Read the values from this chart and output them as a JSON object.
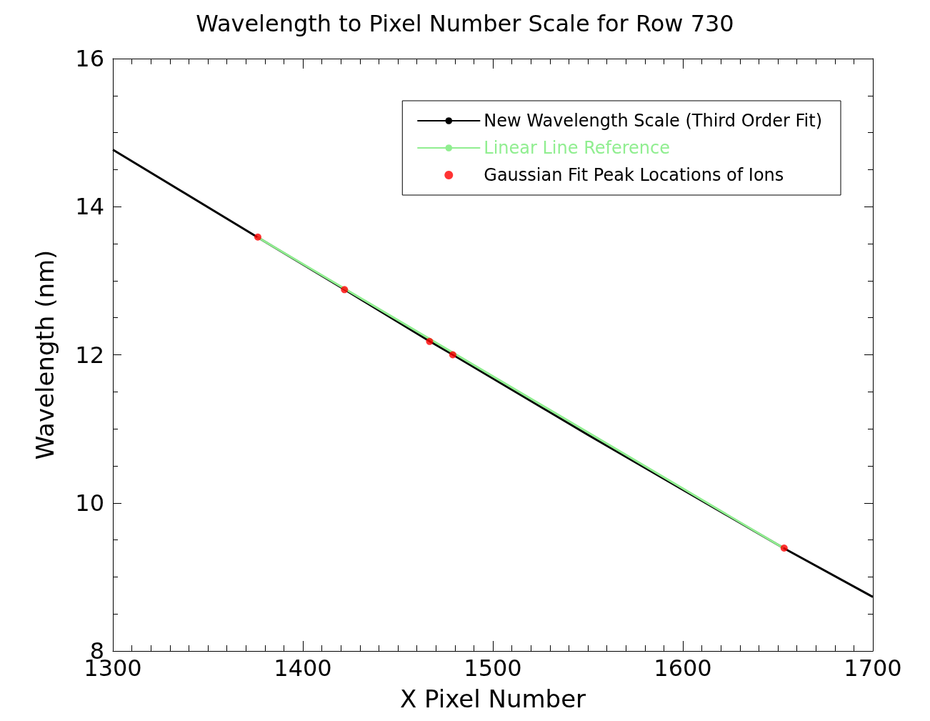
{
  "chart_data": {
    "type": "line",
    "title": "Wavelength to Pixel Number Scale for Row 730",
    "xlabel": "X Pixel Number",
    "ylabel": "Wavelength (nm)",
    "xlim": [
      1300,
      1700
    ],
    "xticks": [
      1300,
      1400,
      1500,
      1600,
      1700
    ],
    "ylim": [
      8,
      16
    ],
    "yticks": [
      8,
      10,
      12,
      14,
      16
    ],
    "grid": false,
    "legend": "top right",
    "series": [
      {
        "name": "New Wavelength Scale (Third Order Fit)",
        "color": "#000000",
        "x": [
          1300,
          1376,
          1422,
          1467,
          1479,
          1550,
          1653,
          1700
        ],
        "values": [
          14.77,
          13.59,
          12.88,
          12.18,
          12.0,
          10.92,
          9.39,
          8.73
        ]
      },
      {
        "name": "Linear Line Reference",
        "color": "#90ee90",
        "x": [
          1376,
          1653
        ],
        "values": [
          13.59,
          9.39
        ]
      },
      {
        "name": "Gaussian Fit Peak Locations of Ions",
        "type": "scatter",
        "color": "#ff0000",
        "marker": "circle",
        "x": [
          1376.3,
          1421.9,
          1466.7,
          1478.9,
          1653.3
        ],
        "values": [
          13.59,
          12.88,
          12.18,
          12.0,
          9.39
        ]
      }
    ]
  }
}
